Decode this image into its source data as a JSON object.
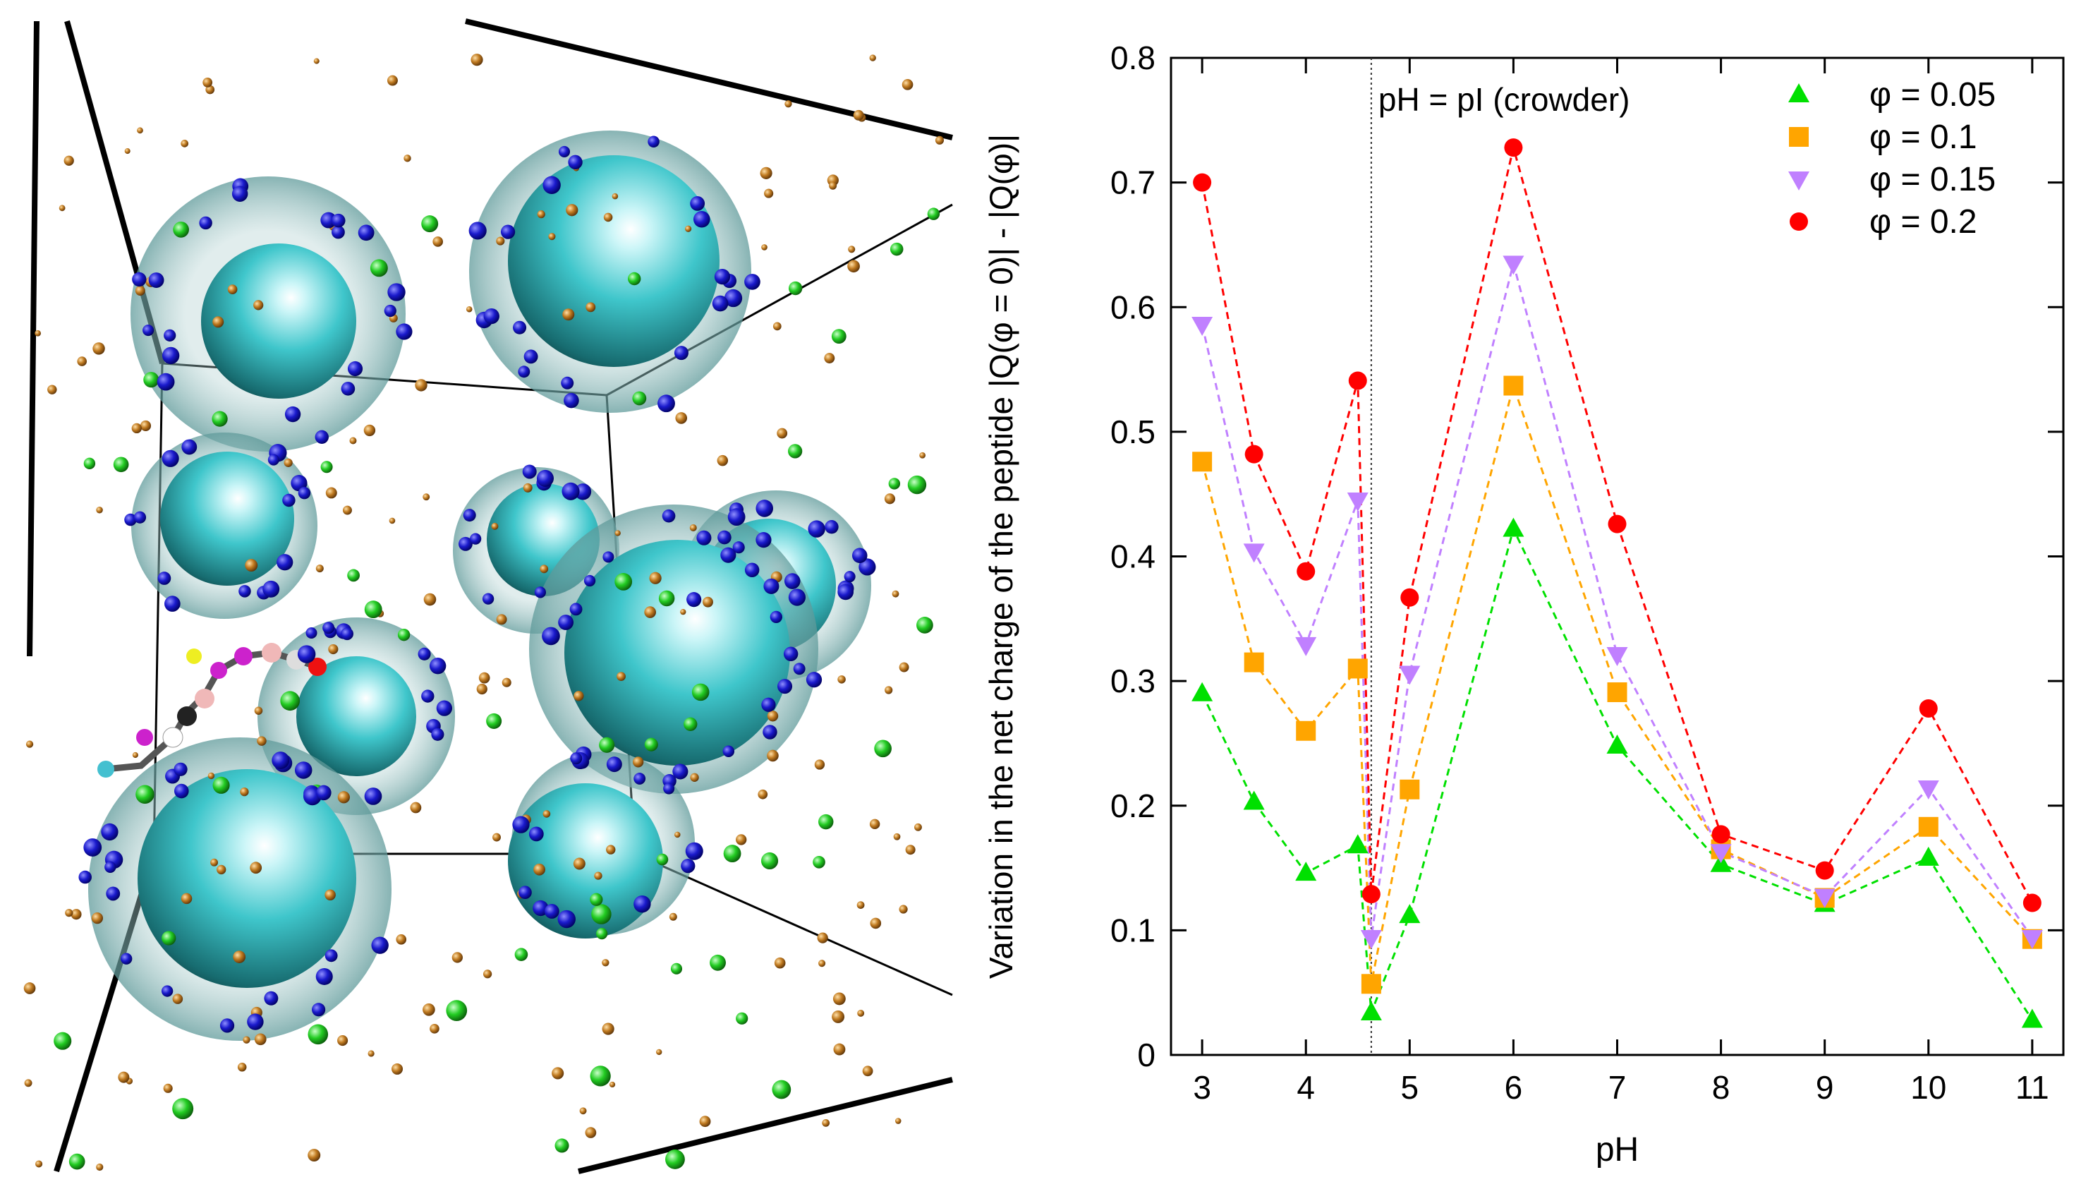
{
  "chart_data": {
    "type": "line",
    "title": "",
    "xlabel": "pH",
    "ylabel": "Variation in the net charge of the peptide |Q(φ = 0)| - |Q(φ)|",
    "xlim": [
      2.7,
      11.3
    ],
    "ylim": [
      0,
      0.8
    ],
    "x_ticks": [
      3,
      4,
      5,
      6,
      7,
      8,
      9,
      10,
      11
    ],
    "y_ticks": [
      0,
      0.1,
      0.2,
      0.3,
      0.4,
      0.5,
      0.6,
      0.7,
      0.8
    ],
    "x_tick_labels": [
      "3",
      "4",
      "5",
      "6",
      "7",
      "8",
      "9",
      "10",
      "11"
    ],
    "y_tick_labels": [
      "0",
      "0.1",
      "0.2",
      "0.3",
      "0.4",
      "0.5",
      "0.6",
      "0.7",
      "0.8"
    ],
    "x": [
      3,
      3.5,
      4,
      4.5,
      4.63,
      5,
      6,
      7,
      8,
      9,
      10,
      11
    ],
    "series": [
      {
        "name": "φ = 0.05",
        "color": "#00e000",
        "marker": "triangle-up",
        "values": [
          0.29,
          0.203,
          0.146,
          0.168,
          0.034,
          0.112,
          0.422,
          0.248,
          0.153,
          0.121,
          0.158,
          0.028
        ]
      },
      {
        "name": "φ = 0.1",
        "color": "#ffa500",
        "marker": "square",
        "values": [
          0.476,
          0.315,
          0.26,
          0.31,
          0.057,
          0.213,
          0.537,
          0.291,
          0.165,
          0.126,
          0.183,
          0.093
        ]
      },
      {
        "name": "φ = 0.15",
        "color": "#c080ff",
        "marker": "triangle-down",
        "values": [
          0.586,
          0.404,
          0.329,
          0.445,
          0.094,
          0.306,
          0.635,
          0.321,
          0.163,
          0.127,
          0.214,
          0.094
        ]
      },
      {
        "name": "φ = 0.2",
        "color": "#ff0000",
        "marker": "circle",
        "values": [
          0.7,
          0.482,
          0.388,
          0.541,
          0.129,
          0.367,
          0.728,
          0.426,
          0.177,
          0.148,
          0.278,
          0.122
        ]
      }
    ],
    "vline": {
      "x": 4.63,
      "label": "pH = pI (crowder)"
    },
    "legend_position": "top-right"
  },
  "scene": {
    "description_name": "molecular-simulation-snapshot",
    "crowder_color": "#33c4c8",
    "shell_color": "#7fb3b3",
    "ion_colors": {
      "counterion": "#1a1acc",
      "salt_small": "#b8741a",
      "salt_green": "#22cc22"
    }
  }
}
